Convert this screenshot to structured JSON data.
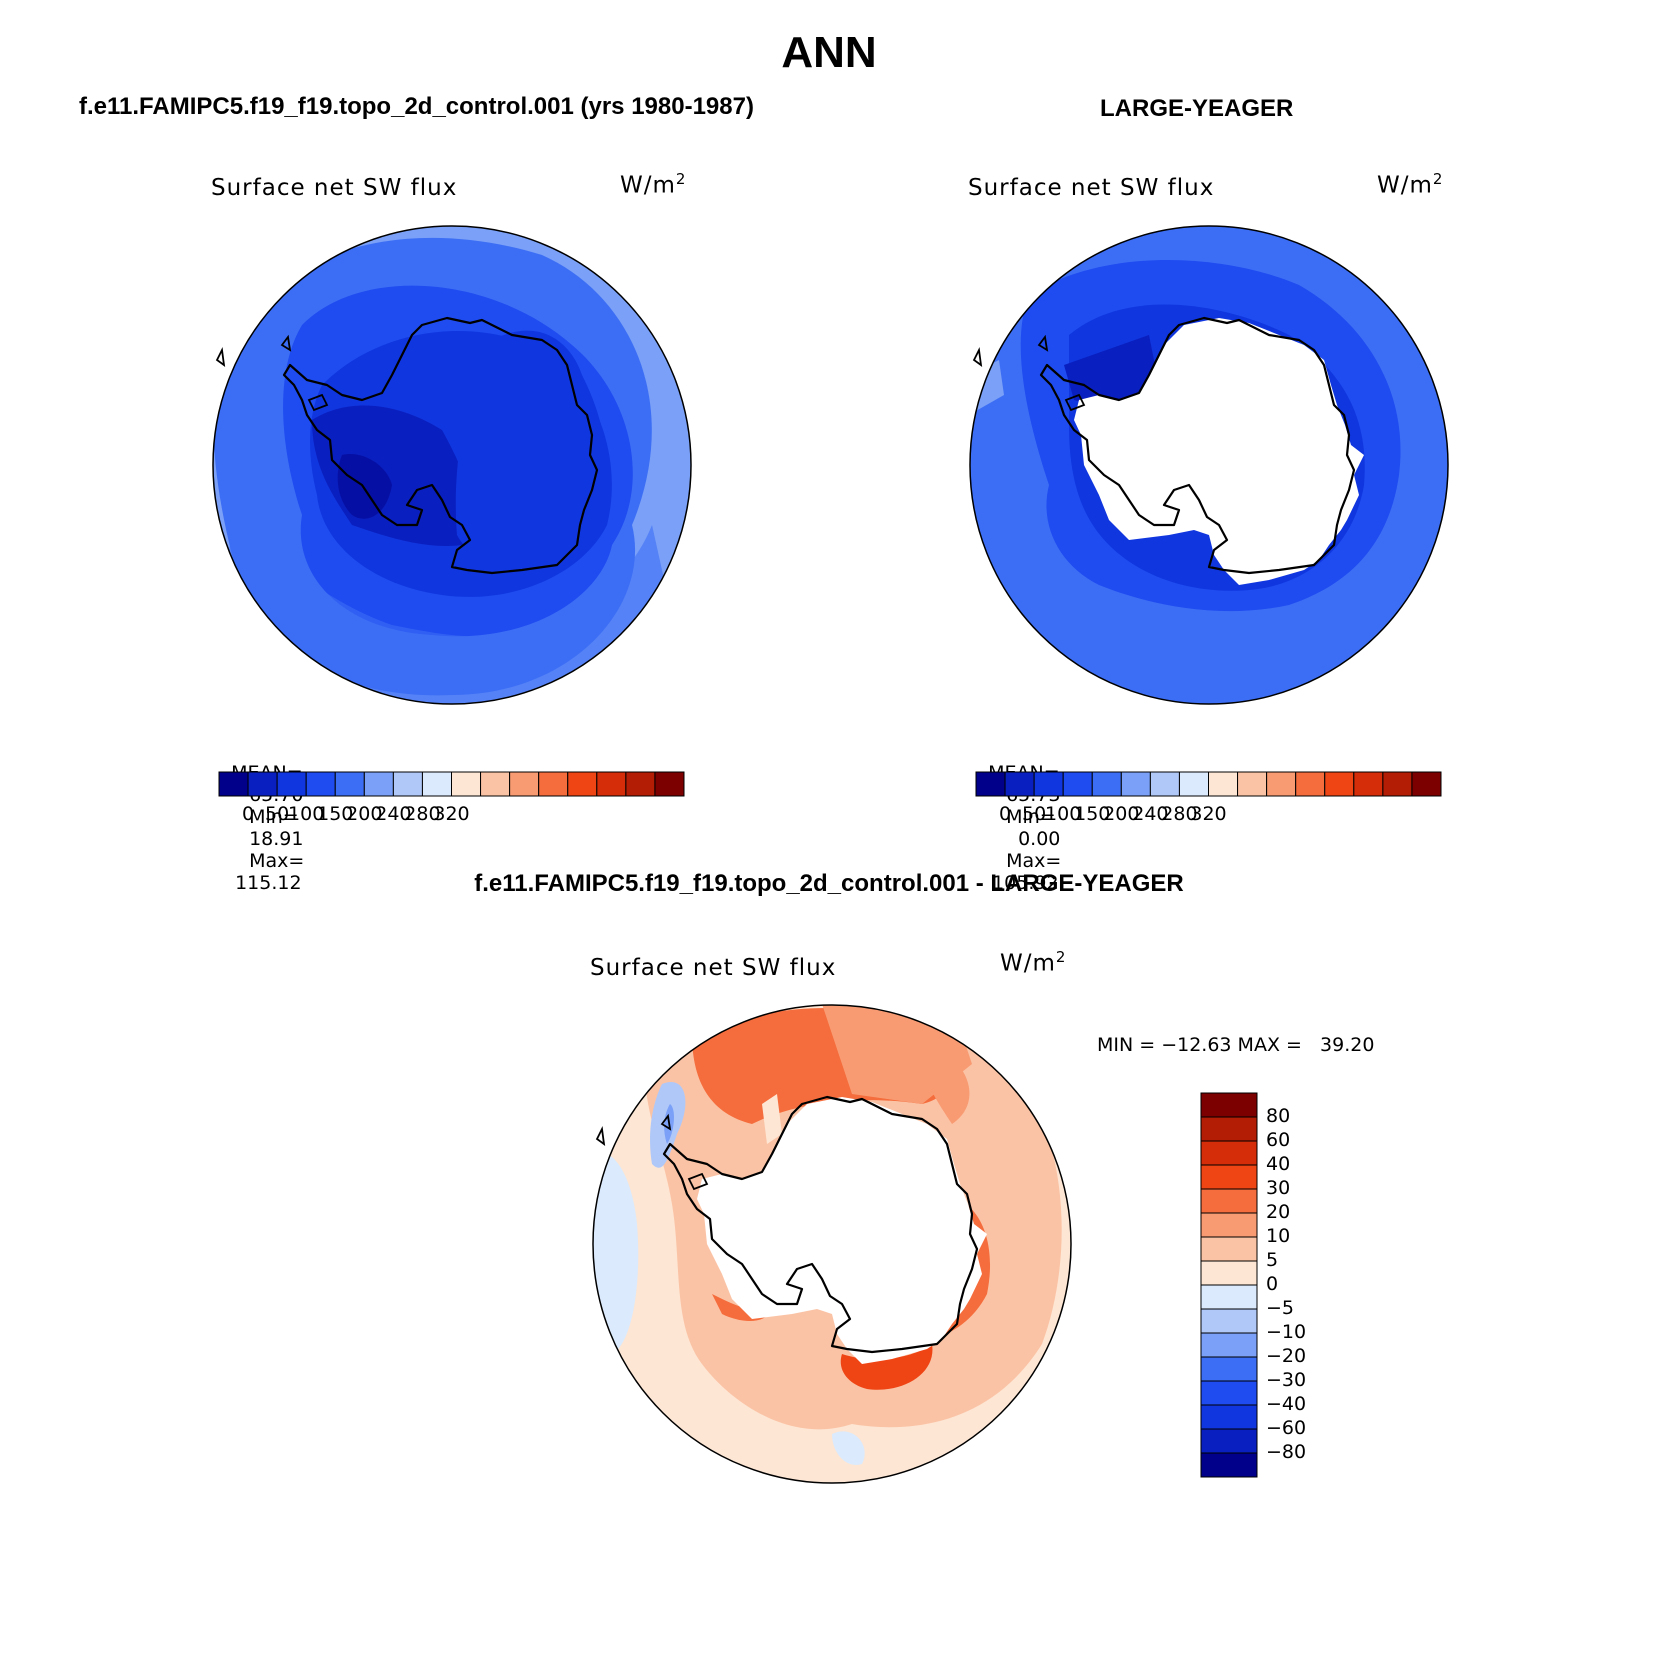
{
  "figure_title": "ANN",
  "panels": [
    {
      "header": "f.e11.FAMIPC5.f19_f19.topo_2d_control.001 (yrs 1980-1987)",
      "title": "Surface net SW flux",
      "units": "W/m",
      "units_sup": "2",
      "stats": {
        "mean_label": "MEAN=",
        "mean": "65.70",
        "min_label": "Min=",
        "min": "18.91",
        "max_label": "Max=",
        "max": "115.12"
      },
      "colorbar_ticks": [
        "0",
        "50",
        "100",
        "150",
        "200",
        "240",
        "280",
        "320"
      ]
    },
    {
      "header": "LARGE-YEAGER",
      "title": "Surface net SW flux",
      "units": "W/m",
      "units_sup": "2",
      "stats": {
        "mean_label": "MEAN=",
        "mean": "65.73",
        "min_label": "Min=",
        "min": "0.00",
        "max_label": "Max=",
        "max": "105.92"
      },
      "colorbar_ticks": [
        "0",
        "50",
        "100",
        "150",
        "200",
        "240",
        "280",
        "320"
      ]
    },
    {
      "header": "f.e11.FAMIPC5.f19_f19.topo_2d_control.001 - LARGE-YEAGER",
      "title": "Surface net SW flux",
      "units": "W/m",
      "units_sup": "2",
      "minmax": "MIN = −12.63 MAX =   39.20",
      "colorbar_ticks": [
        "80",
        "60",
        "40",
        "30",
        "20",
        "10",
        "5",
        "0",
        "−5",
        "−10",
        "−20",
        "−30",
        "−40",
        "−60",
        "−80"
      ]
    }
  ],
  "colors": {
    "abs_scale": [
      "#00008a",
      "#0a1fbf",
      "#1036df",
      "#1e4cf0",
      "#3c6ef5",
      "#7aa0f7",
      "#b0c8f8",
      "#dbeafc",
      "#fde6d4",
      "#fbc3a5",
      "#f89b73",
      "#f56d3c",
      "#ef4515",
      "#d52c0a",
      "#b31d05",
      "#7d0000"
    ],
    "diff_scale": [
      "#7d0000",
      "#b31d05",
      "#d52c0a",
      "#ef4515",
      "#f56d3c",
      "#f89b73",
      "#fbc3a5",
      "#fde6d4",
      "#dbeafc",
      "#b0c8f8",
      "#7aa0f7",
      "#3c6ef5",
      "#1e4cf0",
      "#1036df",
      "#0a1fbf",
      "#00008a"
    ]
  }
}
